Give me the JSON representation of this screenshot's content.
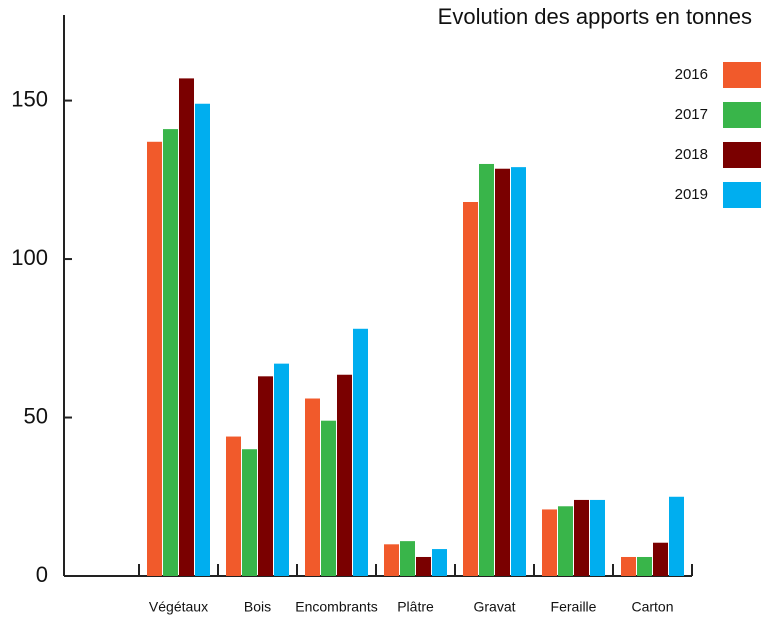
{
  "chart_data": {
    "type": "bar",
    "title": "Evolution des apports en tonnes",
    "categories": [
      "Végétaux",
      "Bois",
      "Encombrants",
      "Plâtre",
      "Gravat",
      "Feraille",
      "Carton"
    ],
    "series": [
      {
        "name": "2016",
        "color": "#f15a2b",
        "values": [
          137,
          44,
          56,
          10,
          118,
          21,
          6
        ]
      },
      {
        "name": "2017",
        "color": "#39b54a",
        "values": [
          141,
          40,
          49,
          11,
          130,
          22,
          6
        ]
      },
      {
        "name": "2018",
        "color": "#7a0000",
        "values": [
          157,
          63,
          63.5,
          6,
          128.5,
          24,
          10.5
        ]
      },
      {
        "name": "2019",
        "color": "#00aeef",
        "values": [
          149,
          67,
          78,
          8.5,
          129,
          24,
          25
        ]
      }
    ],
    "ylim": [
      0,
      177
    ],
    "yticks": [
      0,
      50,
      100,
      150
    ],
    "legend": "top-right"
  }
}
